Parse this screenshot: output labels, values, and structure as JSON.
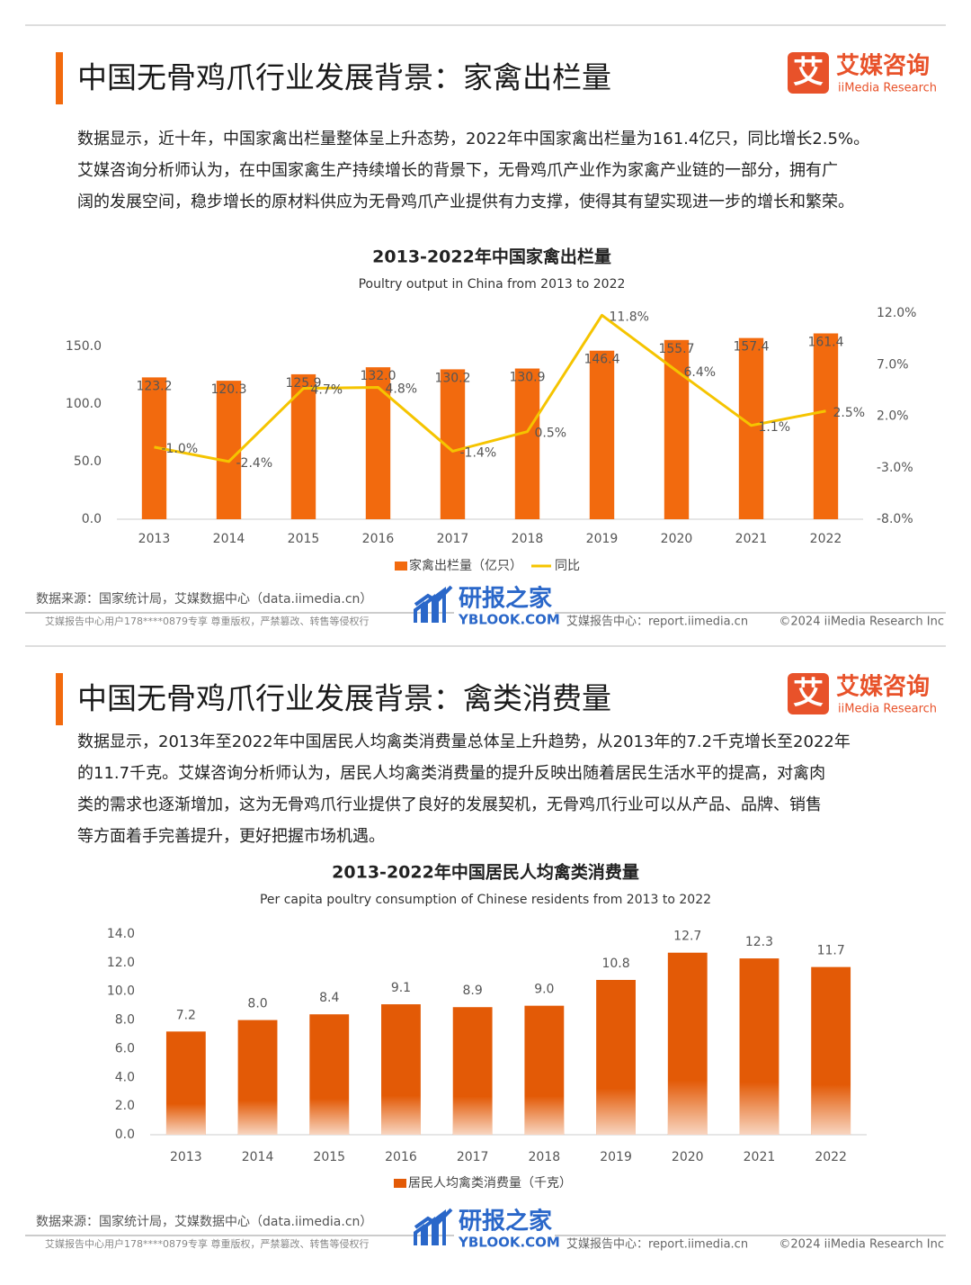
{
  "pages": [
    {
      "title": "中国无骨鸡爪行业发展背景：家禽出栏量",
      "logo_icon": "艾",
      "logo_cn": "艾媒咨询",
      "logo_en": "iiMedia Research",
      "paragraph": [
        "数据显示，近十年，中国家禽出栏量整体呈上升态势，2022年中国家禽出栏量为161.4亿只，同比增长2.5%。",
        "艾媒咨询分析师认为，在中国家禽生产持续增长的背景下，无骨鸡爪产业作为家禽产业链的一部分，拥有广",
        "阔的发展空间，稳步增长的原材料供应为无骨鸡爪产业提供有力支撑，使得其有望实现进一步的增长和繁荣。"
      ],
      "source": "数据来源：国家统计局，艾媒数据中心（data.iimedia.cn）",
      "watermark_cn": "研报之家",
      "watermark_en": "YBLOOK.COM",
      "footer_user": "艾媒报告中心用户178****0879专享 尊重版权，严禁篡改、转售等侵权行",
      "footer_site": "艾媒报告中心：report.iimedia.cn",
      "footer_copy": "©2024  iiMedia Research  Inc"
    },
    {
      "title": "中国无骨鸡爪行业发展背景：禽类消费量",
      "logo_icon": "艾",
      "logo_cn": "艾媒咨询",
      "logo_en": "iiMedia Research",
      "paragraph": [
        "数据显示，2013年至2022年中国居民人均禽类消费量总体呈上升趋势，从2013年的7.2千克增长至2022年",
        "的11.7千克。艾媒咨询分析师认为，居民人均禽类消费量的提升反映出随着居民生活水平的提高，对禽肉",
        "类的需求也逐渐增加，这为无骨鸡爪行业提供了良好的发展契机，无骨鸡爪行业可以从产品、品牌、销售",
        "等方面着手完善提升，更好把握市场机遇。"
      ],
      "source": "数据来源：国家统计局，艾媒数据中心（data.iimedia.cn）",
      "watermark_cn": "研报之家",
      "watermark_en": "YBLOOK.COM",
      "footer_user": "艾媒报告中心用户178****0879专享 尊重版权，严禁篡改、转售等侵权行",
      "footer_site": "艾媒报告中心：report.iimedia.cn",
      "footer_copy": "©2024  iiMedia Research  Inc"
    }
  ],
  "chart_data": [
    {
      "type": "combo",
      "title": "2013-2022年中国家禽出栏量",
      "subtitle": "Poultry output in China from 2013 to 2022",
      "categories": [
        "2013",
        "2014",
        "2015",
        "2016",
        "2017",
        "2018",
        "2019",
        "2020",
        "2021",
        "2022"
      ],
      "series": [
        {
          "name": "家禽出栏量（亿只）",
          "type": "bar",
          "color": "#f26a0e",
          "values": [
            123.2,
            120.3,
            125.9,
            132.0,
            130.2,
            130.9,
            146.4,
            155.7,
            157.4,
            161.4
          ],
          "value_labels": [
            "123.2",
            "120.3",
            "125.9",
            "132.0",
            "130.2",
            "130.9",
            "146.4",
            "155.7",
            "157.4",
            "161.4"
          ]
        },
        {
          "name": "同比",
          "type": "line",
          "axis": "y2",
          "color": "#f5c400",
          "values": [
            -1.0,
            -2.4,
            4.7,
            4.8,
            -1.4,
            0.5,
            11.8,
            6.4,
            1.1,
            2.5
          ],
          "value_labels": [
            "-1.0%",
            "-2.4%",
            "4.7%",
            "4.8%",
            "-1.4%",
            "0.5%",
            "11.8%",
            "6.4%",
            "1.1%",
            "2.5%"
          ]
        }
      ],
      "ylim": [
        0,
        179
      ],
      "yticks": [
        {
          "value": 0,
          "label": "0.0"
        },
        {
          "value": 50,
          "label": "50.0"
        },
        {
          "value": 100,
          "label": "100.0"
        },
        {
          "value": 150,
          "label": "150.0"
        }
      ],
      "y2lim": [
        -8,
        12
      ],
      "y2ticks": [
        {
          "value": -8,
          "label": "-8.0%"
        },
        {
          "value": -3,
          "label": "-3.0%"
        },
        {
          "value": 2,
          "label": "2.0%"
        },
        {
          "value": 7,
          "label": "7.0%"
        },
        {
          "value": 12,
          "label": "12.0%"
        }
      ],
      "grid": false
    },
    {
      "type": "bar",
      "title": "2013-2022年中国居民人均禽类消费量",
      "subtitle": "Per capita poultry consumption of Chinese residents from 2013 to 2022",
      "categories": [
        "2013",
        "2014",
        "2015",
        "2016",
        "2017",
        "2018",
        "2019",
        "2020",
        "2021",
        "2022"
      ],
      "series": [
        {
          "name": "居民人均禽类消费量（千克）",
          "type": "bar",
          "color": "#e35a06",
          "values": [
            7.2,
            8.0,
            8.4,
            9.1,
            8.9,
            9.0,
            10.8,
            12.7,
            12.3,
            11.7
          ],
          "value_labels": [
            "7.2",
            "8.0",
            "8.4",
            "9.1",
            "8.9",
            "9.0",
            "10.8",
            "12.7",
            "12.3",
            "11.7"
          ]
        }
      ],
      "ylim": [
        0,
        14
      ],
      "yticks": [
        {
          "value": 0,
          "label": "0.0"
        },
        {
          "value": 2,
          "label": "2.0"
        },
        {
          "value": 4,
          "label": "4.0"
        },
        {
          "value": 6,
          "label": "6.0"
        },
        {
          "value": 8,
          "label": "8.0"
        },
        {
          "value": 10,
          "label": "10.0"
        },
        {
          "value": 12,
          "label": "12.0"
        },
        {
          "value": 14,
          "label": "14.0"
        }
      ],
      "grid": false
    }
  ]
}
